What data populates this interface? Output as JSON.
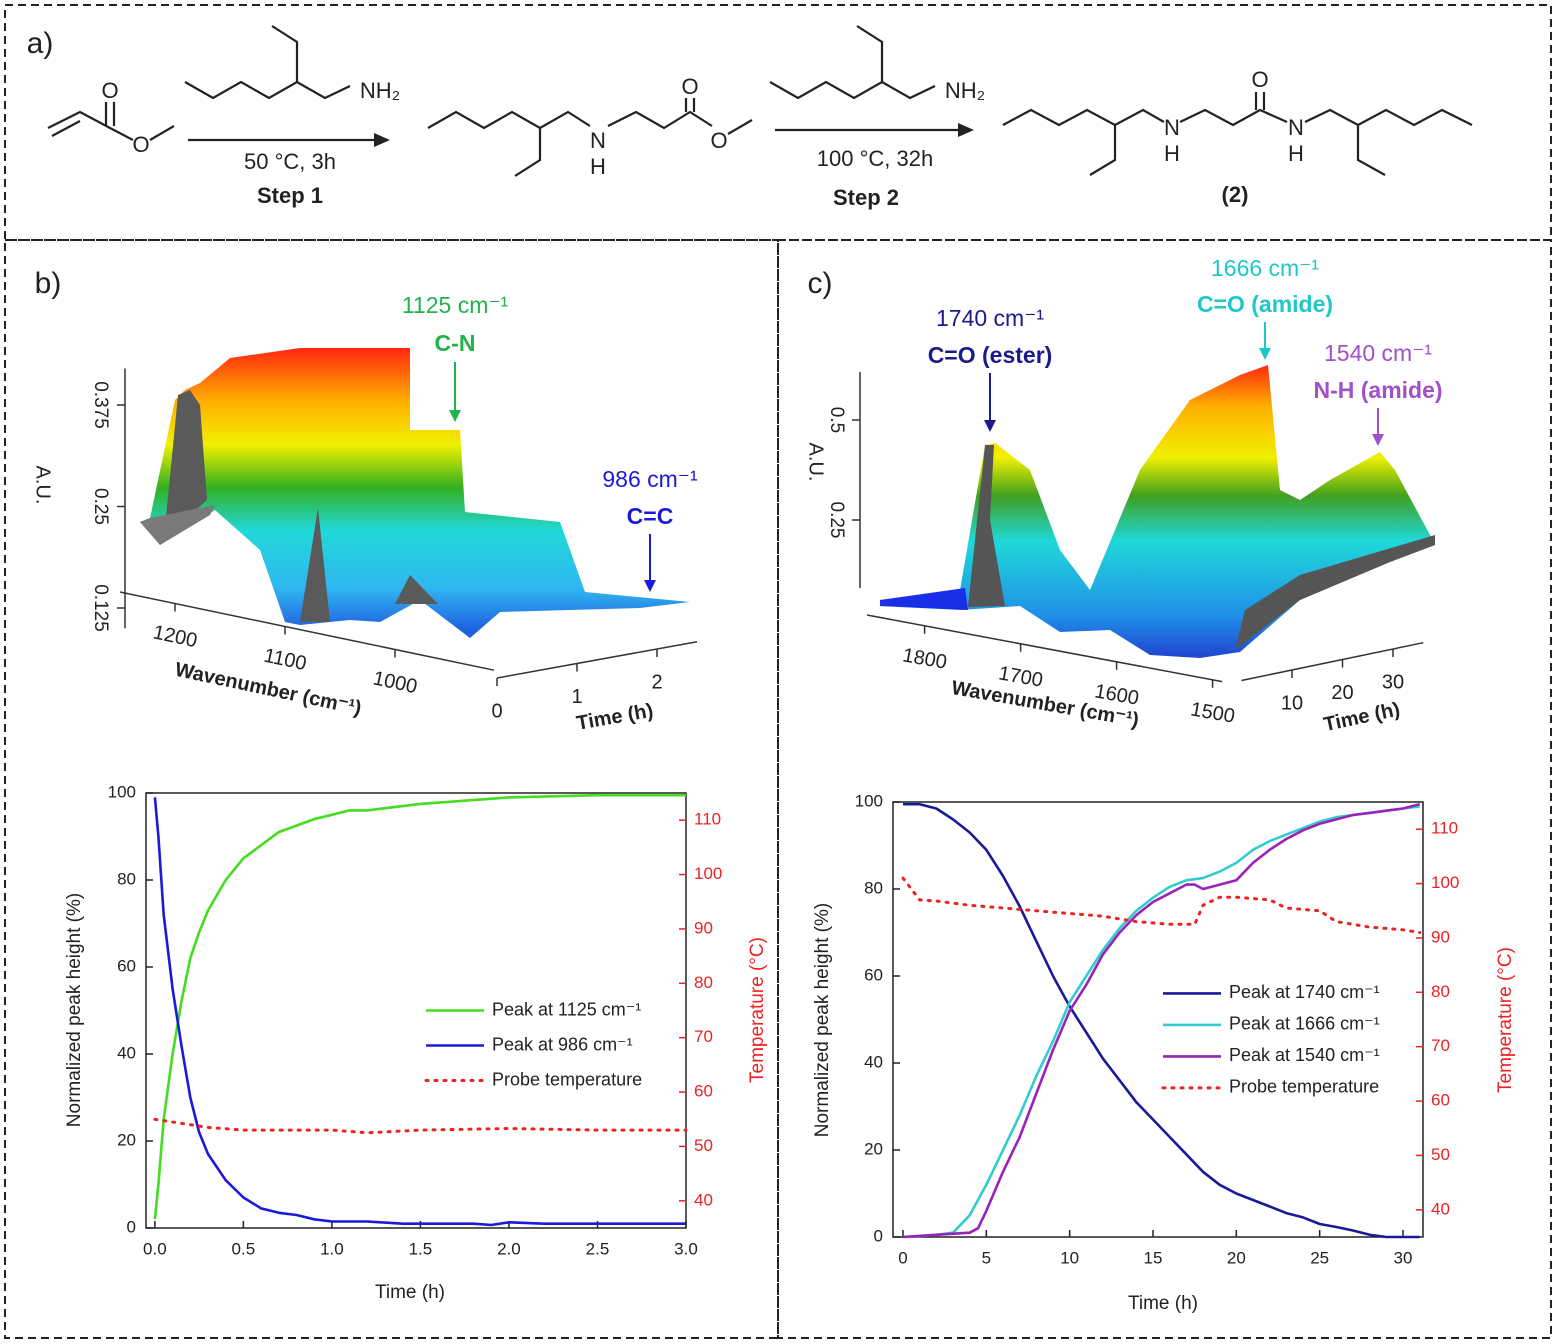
{
  "scheme": {
    "label": "a)",
    "texts": [
      "O",
      "O",
      "NH₂",
      "50 °C, 3h",
      "Step 1",
      "N",
      "H",
      "O",
      "O",
      "NH₂",
      "100 °C, 32h",
      "Step 2",
      "O",
      "N",
      "H",
      "N",
      "H",
      "(2)"
    ]
  },
  "panel_labels": {
    "b": "b)",
    "c": "c)"
  },
  "chart_data": [
    {
      "type": "surface3d",
      "xlabel": "Wavenumber (cm⁻¹)",
      "ylabel": "Time (h)",
      "zlabel": "A.U.",
      "xlim": [
        1250,
        910
      ],
      "xticks": [
        1200,
        1100,
        1000
      ],
      "ylim": [
        0,
        2.5
      ],
      "yticks": [
        0,
        1,
        2
      ],
      "zlim": [
        0.1,
        0.42
      ],
      "zticks": [
        0.125,
        0.25,
        0.375
      ],
      "annotations": [
        {
          "text": "1125 cm⁻¹",
          "label": "C-N",
          "color": "#22b24c"
        },
        {
          "text": "986 cm⁻¹",
          "label": "C=C",
          "color": "#1a1ad8"
        }
      ]
    },
    {
      "type": "line",
      "xlabel": "Time (h)",
      "ylabel": "Normalized peak height (%)",
      "y2label": "Temperature (°C)",
      "y2color": "#ee2222",
      "xlim": [
        -0.05,
        3.0
      ],
      "xticks": [
        {
          "value": 0,
          "label": "0.0"
        },
        0.5,
        {
          "value": 1,
          "label": "1.0"
        },
        1.5,
        {
          "value": 2,
          "label": "2.0"
        },
        2.5,
        {
          "value": 3,
          "label": "3.0"
        }
      ],
      "ylim": [
        0,
        100
      ],
      "yticks": [
        0,
        20,
        40,
        60,
        80,
        100
      ],
      "y2lim": [
        35,
        115
      ],
      "y2ticks": [
        40,
        50,
        60,
        70,
        80,
        90,
        100,
        110
      ],
      "legend": "center right",
      "series": [
        {
          "name": "Peak at 1125 cm⁻¹",
          "color": "#44dd22",
          "style": "solid",
          "x": [
            0,
            0.02,
            0.05,
            0.1,
            0.15,
            0.2,
            0.25,
            0.3,
            0.4,
            0.5,
            0.6,
            0.7,
            0.8,
            0.9,
            1.0,
            1.1,
            1.2,
            1.3,
            1.5,
            2.0,
            2.5,
            3.0
          ],
          "values": [
            2,
            10,
            25,
            40,
            52,
            62,
            68,
            73,
            80,
            85,
            88,
            91,
            92.5,
            94,
            95,
            96,
            96,
            96.5,
            97.5,
            99,
            99.5,
            99.5
          ]
        },
        {
          "name": "Peak at 986 cm⁻¹",
          "color": "#1a1ad8",
          "style": "solid",
          "x": [
            0,
            0.02,
            0.05,
            0.1,
            0.15,
            0.2,
            0.25,
            0.3,
            0.4,
            0.5,
            0.6,
            0.7,
            0.8,
            0.9,
            1.0,
            1.2,
            1.4,
            1.8,
            1.9,
            2.0,
            2.2,
            3.0
          ],
          "values": [
            99,
            90,
            72,
            55,
            42,
            30,
            22,
            17,
            11,
            7,
            4.5,
            3.5,
            3,
            2,
            1.5,
            1.5,
            1,
            1,
            0.7,
            1.3,
            1,
            1
          ]
        },
        {
          "name": "Probe temperature",
          "color": "#ee2222",
          "style": "dotted",
          "axis": "y2",
          "x": [
            0,
            0.1,
            0.3,
            0.5,
            1.0,
            1.2,
            1.5,
            2.0,
            2.5,
            3.0
          ],
          "values": [
            55,
            54.5,
            53.5,
            53,
            53,
            52.5,
            53,
            53.3,
            53,
            53
          ]
        }
      ]
    },
    {
      "type": "surface3d",
      "xlabel": "Wavenumber (cm⁻¹)",
      "ylabel": "Time (h)",
      "zlabel": "A.U.",
      "xlim": [
        1860,
        1490
      ],
      "xticks": [
        1800,
        1700,
        1600,
        1500
      ],
      "ylim": [
        0,
        36
      ],
      "yticks": [
        10,
        20,
        30
      ],
      "zlim": [
        0.08,
        0.62
      ],
      "zticks": [
        0.25,
        0.5
      ],
      "annotations": [
        {
          "text": "1740 cm⁻¹",
          "label": "C=O (ester)",
          "color": "#1a1a8c"
        },
        {
          "text": "1666 cm⁻¹",
          "label": "C=O (amide)",
          "color": "#1ec8c8"
        },
        {
          "text": "1540 cm⁻¹",
          "label": "N-H (amide)",
          "color": "#a050c8"
        }
      ]
    },
    {
      "type": "line",
      "xlabel": "Time (h)",
      "ylabel": "Normalized peak height (%)",
      "y2label": "Temperature (°C)",
      "y2color": "#ee2222",
      "xlim": [
        -0.6,
        31.2
      ],
      "xticks": [
        0,
        5,
        10,
        15,
        20,
        25,
        30
      ],
      "ylim": [
        0,
        100
      ],
      "yticks": [
        0,
        20,
        40,
        60,
        80,
        100
      ],
      "y2lim": [
        35,
        115
      ],
      "y2ticks": [
        40,
        50,
        60,
        70,
        80,
        90,
        100,
        110
      ],
      "legend": "lower right",
      "series": [
        {
          "name": "Peak at 1740 cm⁻¹",
          "color": "#1a1a99",
          "style": "solid",
          "x": [
            0,
            1,
            2,
            3,
            4,
            5,
            6,
            7,
            8,
            9,
            10,
            11,
            12,
            13,
            14,
            15,
            16,
            17,
            18,
            19,
            20,
            21,
            22,
            23,
            24,
            25,
            26,
            27,
            28,
            29,
            30,
            31
          ],
          "values": [
            99.5,
            99.5,
            98.5,
            96,
            93,
            89,
            83,
            76,
            68,
            60,
            53,
            47,
            41,
            36,
            31,
            27,
            23,
            19,
            15,
            12,
            10,
            8.5,
            7,
            5.5,
            4.5,
            3,
            2.3,
            1.5,
            0.5,
            0,
            0,
            0
          ]
        },
        {
          "name": "Peak at 1666 cm⁻¹",
          "color": "#33cccc",
          "style": "solid",
          "x": [
            0,
            2,
            3,
            4,
            5,
            6,
            7,
            8,
            9,
            10,
            11,
            12,
            13,
            14,
            15,
            16,
            17,
            18,
            19,
            20,
            21,
            22,
            23,
            24,
            25,
            26,
            27,
            28,
            29,
            30,
            31
          ],
          "values": [
            0,
            0.5,
            1,
            5,
            12,
            20,
            28,
            37,
            45,
            54,
            60,
            66,
            71,
            75,
            78,
            80.5,
            82,
            82.5,
            84,
            86,
            89,
            91,
            92.5,
            94,
            95.5,
            96.5,
            97,
            97.5,
            98,
            98.5,
            99
          ]
        },
        {
          "name": "Peak at 1540 cm⁻¹",
          "color": "#9922bb",
          "style": "solid",
          "x": [
            0,
            2,
            4,
            4.5,
            5,
            6,
            7,
            8,
            9,
            10,
            11,
            12,
            13,
            14,
            15,
            16,
            17,
            17.5,
            18,
            19,
            20,
            21,
            22,
            23,
            24,
            25,
            26,
            27,
            28,
            29,
            30,
            31
          ],
          "values": [
            0,
            0.5,
            1,
            2,
            6,
            15,
            23,
            33,
            43,
            52,
            58,
            65,
            70,
            74,
            77,
            79,
            81,
            81,
            80,
            81,
            82,
            86,
            89,
            91.5,
            93.5,
            95,
            96,
            97,
            97.5,
            98,
            98.5,
            99.5
          ]
        },
        {
          "name": "Probe temperature",
          "color": "#ee2222",
          "style": "dotted",
          "axis": "y2",
          "x": [
            0,
            0.5,
            1,
            2,
            4,
            6,
            8,
            10,
            12,
            14,
            16,
            17.5,
            18,
            19,
            20,
            22,
            23,
            25,
            26,
            28,
            30,
            31
          ],
          "values": [
            101,
            99,
            97,
            96.8,
            96,
            95.5,
            95,
            94.5,
            94,
            93,
            92.5,
            92.5,
            96,
            97.5,
            97.5,
            97,
            95.5,
            95,
            93,
            92,
            91.5,
            91
          ]
        }
      ]
    }
  ]
}
